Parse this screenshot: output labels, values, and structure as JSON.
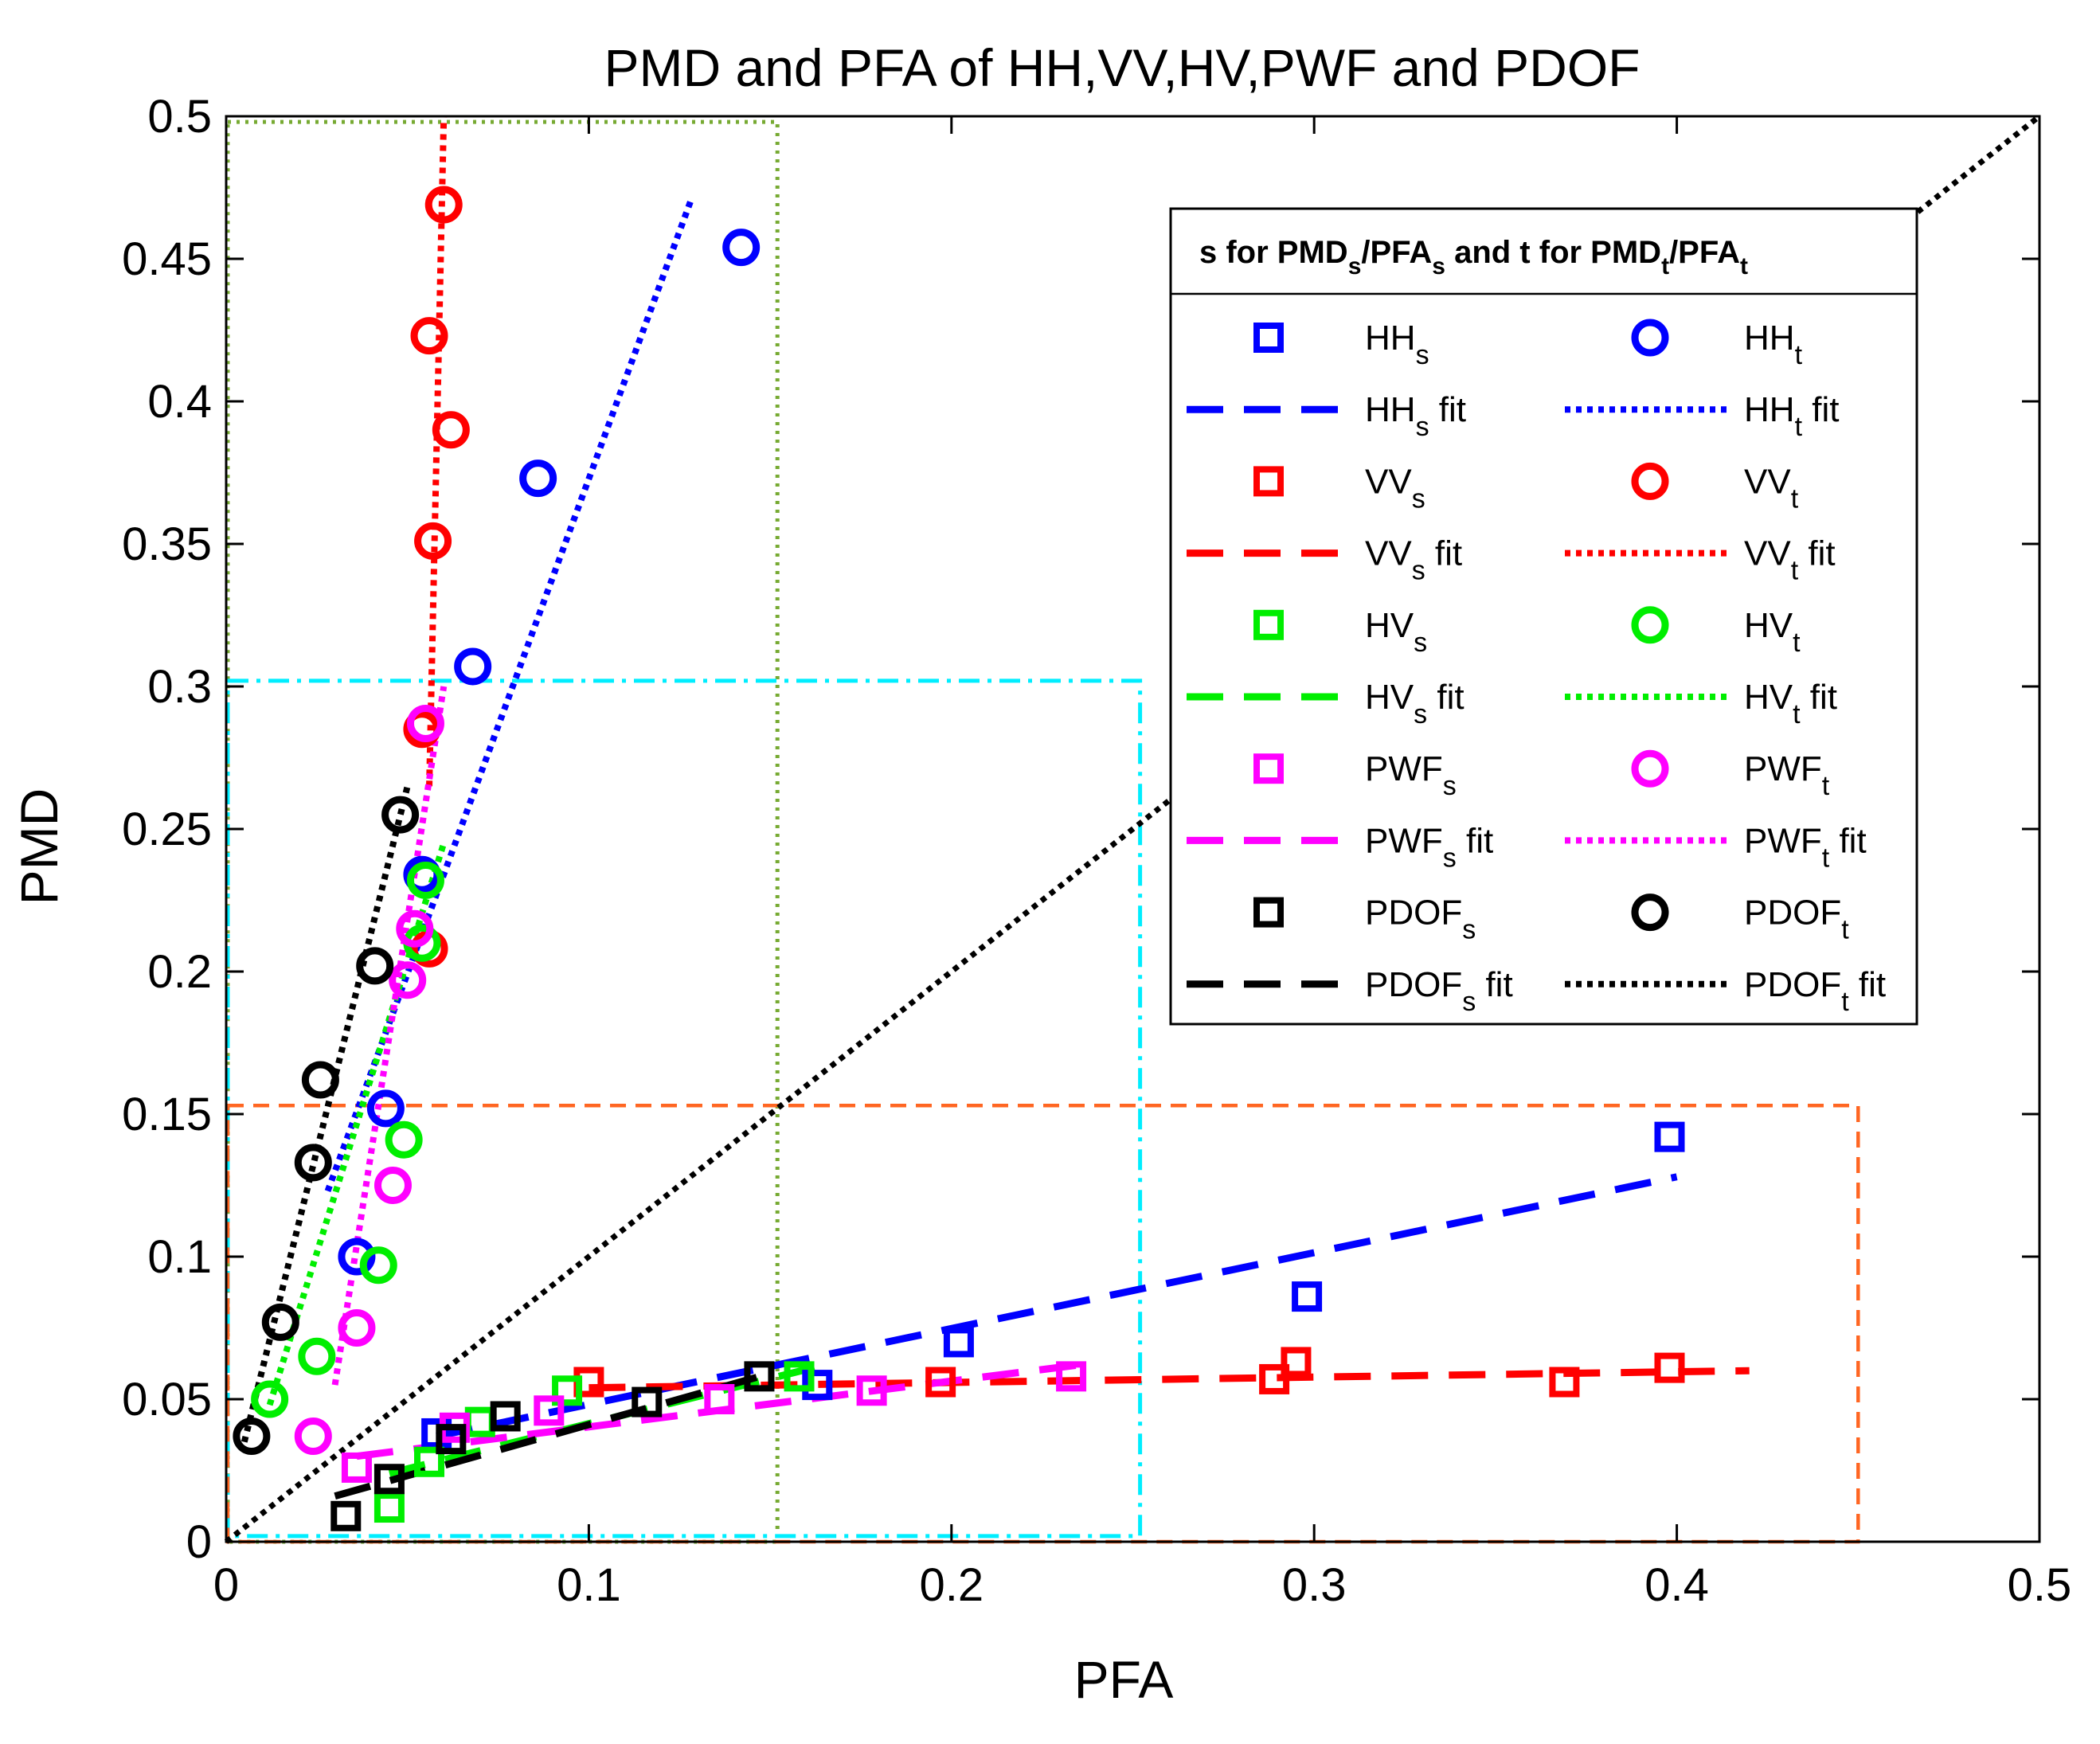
{
  "chart_data": {
    "type": "scatter",
    "title": "PMD and PFA of HH,VV,HV,PWF and PDOF",
    "xlabel": "PFA",
    "ylabel": "PMD",
    "xlim": [
      0,
      0.5
    ],
    "ylim": [
      0,
      0.5
    ],
    "xticks": [
      "0",
      "0.1",
      "0.2",
      "0.3",
      "0.4",
      "0.5"
    ],
    "yticks": [
      "0",
      "0.05",
      "0.1",
      "0.15",
      "0.2",
      "0.25",
      "0.3",
      "0.35",
      "0.4",
      "0.45",
      "0.5"
    ],
    "legend": {
      "title": {
        "prefix": "s for PMD",
        "sub1": "s",
        "mid1": "/PFA",
        "sub2": "s",
        "mid2": " and t for PMD",
        "sub3": "t",
        "mid3": "/PFA",
        "sub4": "t"
      },
      "placement": "top-right"
    },
    "colors": {
      "HH": "#0000ff",
      "VV": "#ff0000",
      "HV": "#00ee00",
      "PWF": "#ff00ff",
      "PDOF": "#000000",
      "box_green": "#77aa33",
      "box_cyan": "#00eeff",
      "box_orange": "#ff6622",
      "diagonal": "#000000"
    },
    "regions": [
      {
        "name": "green-dotted",
        "x": [
          0,
          0.152
        ],
        "y": [
          0,
          0.498
        ]
      },
      {
        "name": "cyan-dashdot",
        "x": [
          0,
          0.252
        ],
        "y": [
          0.002,
          0.302
        ]
      },
      {
        "name": "orange-dashed",
        "x": [
          0,
          0.45
        ],
        "y": [
          0,
          0.153
        ]
      }
    ],
    "diagonal": {
      "x": [
        0,
        0.5
      ],
      "y": [
        0,
        0.5
      ]
    },
    "series": [
      {
        "name": "HH",
        "sub": "s",
        "kind": "square",
        "color": "#0000ff",
        "x": [
          0.058,
          0.163,
          0.202,
          0.298,
          0.398
        ],
        "y": [
          0.038,
          0.055,
          0.07,
          0.086,
          0.142
        ],
        "fit": {
          "style": "dashed",
          "x": [
            0.058,
            0.4
          ],
          "y": [
            0.037,
            0.128
          ]
        }
      },
      {
        "name": "HH",
        "sub": "t",
        "kind": "circle",
        "color": "#0000ff",
        "x": [
          0.036,
          0.044,
          0.054,
          0.068,
          0.086,
          0.142
        ],
        "y": [
          0.1,
          0.152,
          0.234,
          0.307,
          0.373,
          0.454
        ],
        "fit": {
          "style": "dotted",
          "x": [
            0.028,
            0.128
          ],
          "y": [
            0.123,
            0.47
          ]
        }
      },
      {
        "name": "VV",
        "sub": "s",
        "kind": "square",
        "color": "#ff0000",
        "x": [
          0.1,
          0.197,
          0.289,
          0.295,
          0.369,
          0.398
        ],
        "y": [
          0.056,
          0.056,
          0.057,
          0.063,
          0.056,
          0.061
        ],
        "fit": {
          "style": "dashed",
          "x": [
            0.1,
            0.42
          ],
          "y": [
            0.054,
            0.06
          ]
        }
      },
      {
        "name": "VV",
        "sub": "t",
        "kind": "circle",
        "color": "#ff0000",
        "x": [
          0.056,
          0.054,
          0.057,
          0.056,
          0.062,
          0.06
        ],
        "y": [
          0.208,
          0.285,
          0.351,
          0.423,
          0.39,
          0.469
        ],
        "fit": {
          "style": "dotted",
          "x": [
            0.056,
            0.06
          ],
          "y": [
            0.265,
            0.5
          ]
        }
      },
      {
        "name": "HV",
        "sub": "s",
        "kind": "square",
        "color": "#00ee00",
        "x": [
          0.045,
          0.056,
          0.07,
          0.094,
          0.158
        ],
        "y": [
          0.012,
          0.028,
          0.042,
          0.053,
          0.058
        ],
        "fit": {
          "style": "dashed",
          "x": [
            0.045,
            0.165
          ],
          "y": [
            0.024,
            0.062
          ]
        }
      },
      {
        "name": "HV",
        "sub": "t",
        "kind": "circle",
        "color": "#00ee00",
        "x": [
          0.012,
          0.025,
          0.042,
          0.049,
          0.054,
          0.055
        ],
        "y": [
          0.05,
          0.065,
          0.097,
          0.141,
          0.21,
          0.232
        ],
        "fit": {
          "style": "dotted",
          "x": [
            0.012,
            0.06
          ],
          "y": [
            0.048,
            0.245
          ]
        }
      },
      {
        "name": "PWF",
        "sub": "s",
        "kind": "square",
        "color": "#ff00ff",
        "x": [
          0.036,
          0.063,
          0.089,
          0.136,
          0.178,
          0.233
        ],
        "y": [
          0.026,
          0.04,
          0.046,
          0.05,
          0.053,
          0.058
        ],
        "fit": {
          "style": "dashed",
          "x": [
            0.036,
            0.235
          ],
          "y": [
            0.03,
            0.062
          ]
        }
      },
      {
        "name": "PWF",
        "sub": "t",
        "kind": "circle",
        "color": "#ff00ff",
        "x": [
          0.024,
          0.036,
          0.046,
          0.05,
          0.052,
          0.055
        ],
        "y": [
          0.037,
          0.075,
          0.125,
          0.197,
          0.215,
          0.287
        ],
        "fit": {
          "style": "dotted",
          "x": [
            0.03,
            0.06
          ],
          "y": [
            0.055,
            0.3
          ]
        }
      },
      {
        "name": "PDOF",
        "sub": "s",
        "kind": "square",
        "color": "#000000",
        "x": [
          0.033,
          0.045,
          0.062,
          0.077,
          0.116,
          0.147
        ],
        "y": [
          0.009,
          0.022,
          0.036,
          0.044,
          0.049,
          0.058
        ],
        "fit": {
          "style": "dashed",
          "x": [
            0.03,
            0.15
          ],
          "y": [
            0.016,
            0.059
          ]
        }
      },
      {
        "name": "PDOF",
        "sub": "t",
        "kind": "circle",
        "color": "#000000",
        "x": [
          0.007,
          0.015,
          0.024,
          0.026,
          0.041,
          0.048
        ],
        "y": [
          0.037,
          0.077,
          0.133,
          0.162,
          0.202,
          0.255
        ],
        "fit": {
          "style": "dotted",
          "x": [
            0.005,
            0.05
          ],
          "y": [
            0.035,
            0.265
          ]
        }
      }
    ]
  }
}
